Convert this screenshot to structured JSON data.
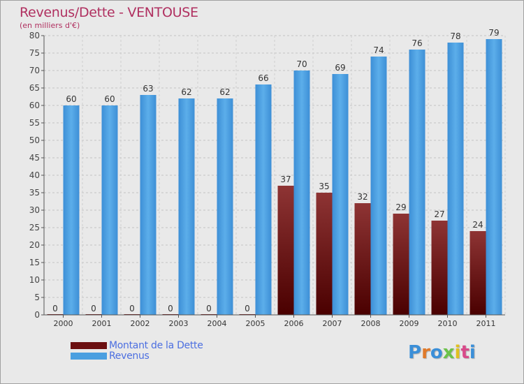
{
  "chart_data": {
    "type": "bar",
    "title": "Revenus/Dette - VENTOUSE",
    "subtitle": "(en milliers d'€)",
    "categories": [
      "2000",
      "2001",
      "2002",
      "2003",
      "2004",
      "2005",
      "2006",
      "2007",
      "2008",
      "2009",
      "2010",
      "2011"
    ],
    "series": [
      {
        "name": "Montant de la Dette",
        "values": [
          0,
          0,
          0,
          0,
          0,
          0,
          37,
          35,
          32,
          29,
          27,
          24
        ],
        "color": "#6b0f10"
      },
      {
        "name": "Revenus",
        "values": [
          60,
          60,
          63,
          62,
          62,
          66,
          70,
          69,
          74,
          76,
          78,
          79
        ],
        "color": "#4a9fe0"
      }
    ],
    "ylim": [
      0,
      80
    ],
    "yticks": [
      0,
      5,
      10,
      15,
      20,
      25,
      30,
      35,
      40,
      45,
      50,
      55,
      60,
      65,
      70,
      75,
      80
    ],
    "grid": true,
    "legend_position": "bottom-left"
  },
  "logo": {
    "letters": [
      "P",
      "r",
      "o",
      "x",
      "i",
      "t",
      "i"
    ],
    "colors": [
      "#3b8fd8",
      "#e07a2a",
      "#3b8fd8",
      "#6cc24a",
      "#e0c020",
      "#d84a8a",
      "#3b8fd8"
    ]
  }
}
